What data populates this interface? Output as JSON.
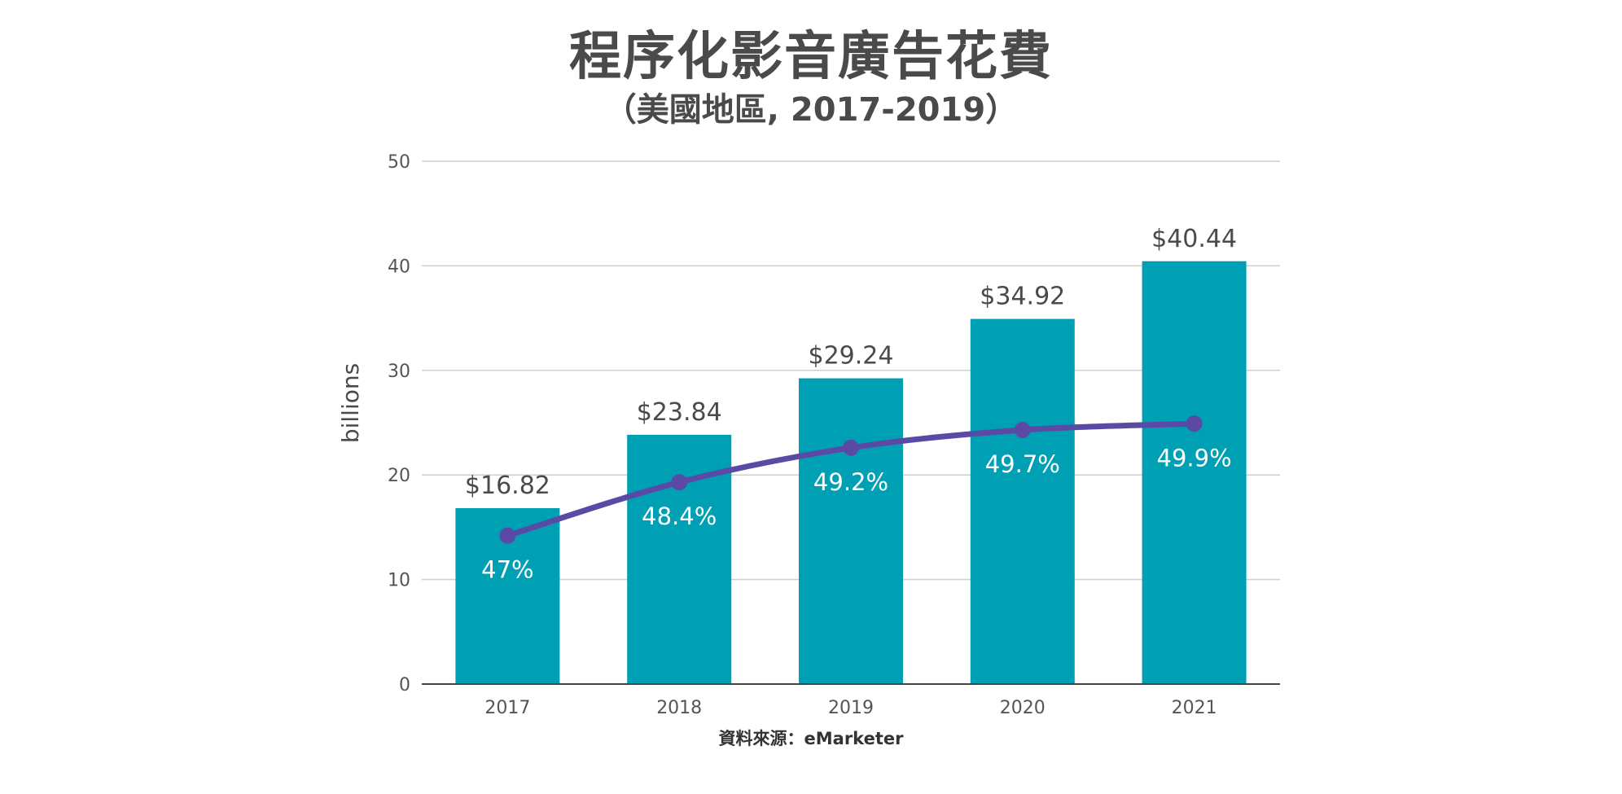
{
  "title": "程序化影音廣告花費",
  "subtitle": "（美國地區, 2017-2019）",
  "source": "資料來源：eMarketer",
  "colors": {
    "bar": "#00a0b4",
    "line": "#5b4aa5",
    "grid": "#cfcfcf",
    "axis": "#555555",
    "text": "#4a4a4a",
    "line_label": "#ffffff"
  },
  "chart_data": {
    "type": "bar",
    "title": "程序化影音廣告花費",
    "subtitle": "（美國地區, 2017-2019）",
    "categories": [
      "2017",
      "2018",
      "2019",
      "2020",
      "2021"
    ],
    "ylabel": "billions",
    "xlabel": "",
    "ylim": [
      0,
      50
    ],
    "yticks": [
      "0",
      "10",
      "20",
      "30",
      "40",
      "50"
    ],
    "grid": true,
    "legend": "none",
    "series": [
      {
        "type": "bar",
        "values": [
          16.82,
          23.84,
          29.24,
          34.92,
          40.44
        ],
        "labels": [
          "$16.82",
          "$23.84",
          "$29.24",
          "$34.92",
          "$40.44"
        ]
      },
      {
        "type": "line",
        "plotted_values": [
          14.2,
          19.3,
          22.6,
          24.3,
          24.9
        ],
        "labels": [
          "47%",
          "48.4%",
          "49.2%",
          "49.7%",
          "49.9%"
        ]
      }
    ]
  }
}
